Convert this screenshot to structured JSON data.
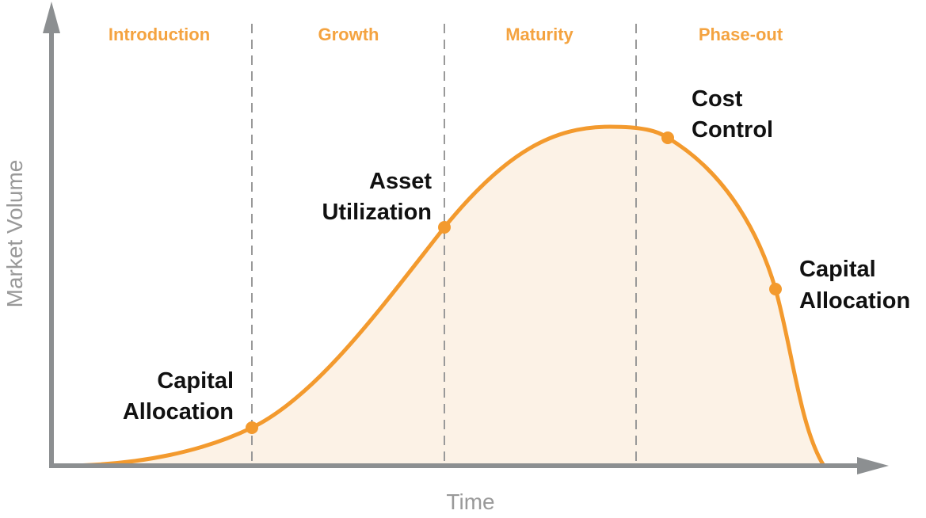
{
  "axes": {
    "y_label": "Market Volume",
    "x_label": "Time"
  },
  "phases": [
    "Introduction",
    "Growth",
    "Maturity",
    "Phase-out"
  ],
  "points": [
    {
      "lines": [
        "Capital",
        "Allocation"
      ]
    },
    {
      "lines": [
        "Asset",
        "Utilization"
      ]
    },
    {
      "lines": [
        "Cost",
        "Control"
      ]
    },
    {
      "lines": [
        "Capital",
        "Allocation"
      ]
    }
  ]
}
